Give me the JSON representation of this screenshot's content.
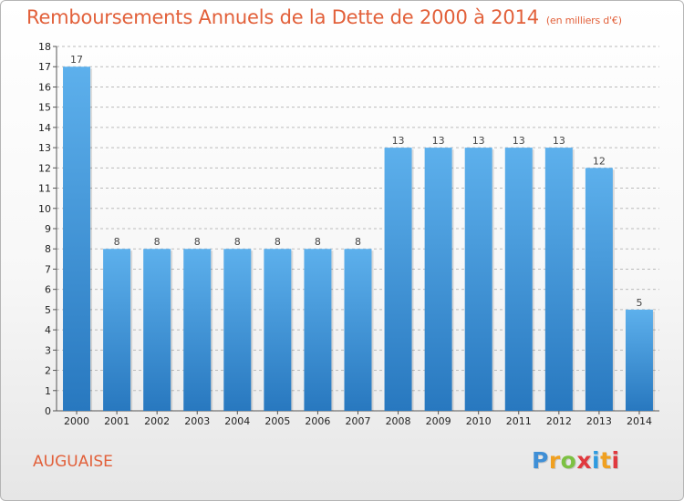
{
  "header": {
    "title": "Remboursements Annuels de la Dette de 2000 à 2014",
    "unit": "(en milliers d'€)"
  },
  "footer": {
    "commune": "AUGUAISE",
    "logo_letters": [
      "P",
      "r",
      "o",
      "x",
      "i",
      "t",
      "i"
    ],
    "logo_colors": [
      "#3f8fd6",
      "#f0a020",
      "#7cc142",
      "#e0393e",
      "#2e9be0",
      "#f0a020",
      "#e0393e"
    ]
  },
  "colors": {
    "bar_top": "#5db0ec",
    "bar_bottom": "#2878bf",
    "grid": "#bbbbbb",
    "text_accent": "#e2603a"
  },
  "chart_data": {
    "type": "bar",
    "title": "Remboursements Annuels de la Dette de 2000 à 2014",
    "subtitle": "(en milliers d'€)",
    "categories": [
      "2000",
      "2001",
      "2002",
      "2003",
      "2004",
      "2005",
      "2006",
      "2007",
      "2008",
      "2009",
      "2010",
      "2011",
      "2012",
      "2013",
      "2014"
    ],
    "values": [
      17,
      8,
      8,
      8,
      8,
      8,
      8,
      8,
      13,
      13,
      13,
      13,
      13,
      12,
      5
    ],
    "ylim": [
      0,
      18
    ],
    "yticks": [
      0,
      1,
      2,
      3,
      4,
      5,
      6,
      7,
      8,
      9,
      10,
      11,
      12,
      13,
      14,
      15,
      16,
      17,
      18
    ],
    "grid": true
  }
}
